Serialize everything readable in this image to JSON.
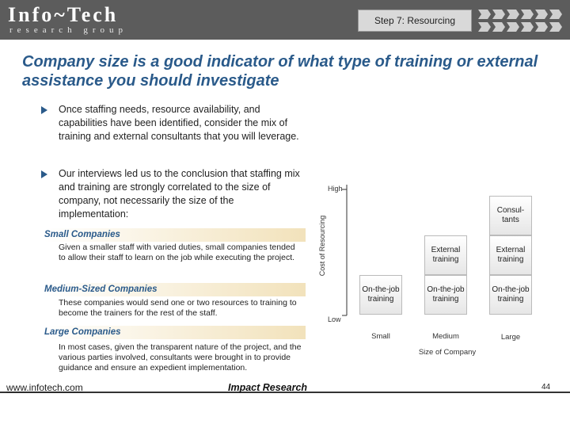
{
  "header": {
    "logo_main": "Info~Tech",
    "logo_sub": "research group",
    "step_label": "Step 7: Resourcing"
  },
  "title": "Company size is a good indicator of what type of training or external assistance you should investigate",
  "bullets": [
    "Once staffing needs, resource availability, and capabilities have been identified, consider the mix of training and external consultants that you will leverage.",
    "Our interviews led us to the conclusion that staffing mix and training are strongly correlated to the size of company, not necessarily the size of the implementation:"
  ],
  "sections": [
    {
      "heading": "Small Companies",
      "body": "Given a smaller staff with varied duties, small companies tended to allow their staff to learn on the job while executing the project."
    },
    {
      "heading": "Medium-Sized Companies",
      "body": "These companies would send one or two resources to training to become the trainers for the rest of the staff."
    },
    {
      "heading": "Large Companies",
      "body": "In most cases, given the transparent nature of the project, and the various parties involved, consultants were brought in to provide guidance and ensure an expedient implementation."
    }
  ],
  "chart": {
    "y_label": "Cost of Resourcing",
    "x_label": "Size of Company",
    "y_high": "High",
    "y_low": "Low",
    "x_categories": [
      "Small",
      "Medium",
      "Large"
    ],
    "cells": {
      "small_onthejob": "On-the-job training",
      "medium_external": "External training",
      "medium_onthejob": "On-the-job training",
      "large_consultants": "Consul-tants",
      "large_external": "External training",
      "large_onthejob": "On-the-job training"
    }
  },
  "footer": {
    "url": "www.infotech.com",
    "center": "Impact Research",
    "page": "44"
  },
  "colors": {
    "title": "#2a5a8a",
    "topbar": "#5c5c5c",
    "section_highlight": "#f2e2bb"
  }
}
